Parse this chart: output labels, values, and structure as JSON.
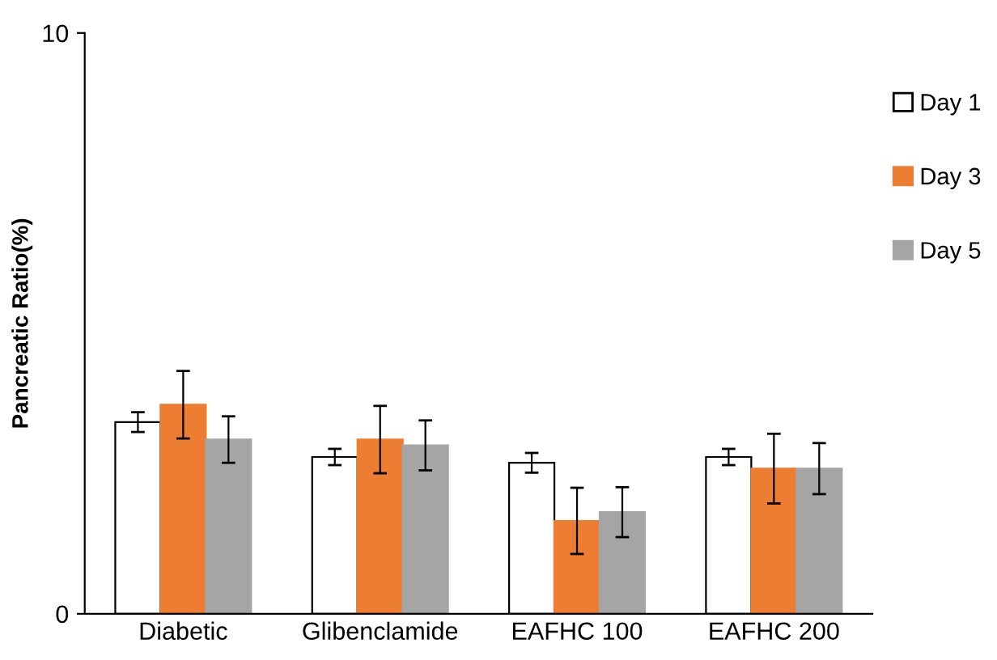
{
  "chart_data": {
    "type": "bar",
    "ylabel": "Pancreatic Ratio(%)",
    "categories": [
      "Diabetic",
      "Glibenclamide",
      "EAFHC 100",
      "EAFHC 200"
    ],
    "series": [
      {
        "name": "Day 1",
        "color": "#ffffff",
        "values": [
          3.3,
          2.7,
          2.6,
          2.7
        ],
        "errors": [
          0.17,
          0.14,
          0.17,
          0.14
        ]
      },
      {
        "name": "Day 3",
        "color": "#ed7d31",
        "values": [
          3.6,
          3.0,
          1.6,
          2.5
        ],
        "errors": [
          0.58,
          0.58,
          0.57,
          0.6
        ]
      },
      {
        "name": "Day 5",
        "color": "#a5a5a5",
        "values": [
          3.0,
          2.9,
          1.75,
          2.5
        ],
        "errors": [
          0.4,
          0.43,
          0.43,
          0.44
        ]
      }
    ],
    "ylim": [
      0,
      10
    ],
    "yticks": [
      0,
      10
    ],
    "grid": false,
    "legend": "right"
  }
}
